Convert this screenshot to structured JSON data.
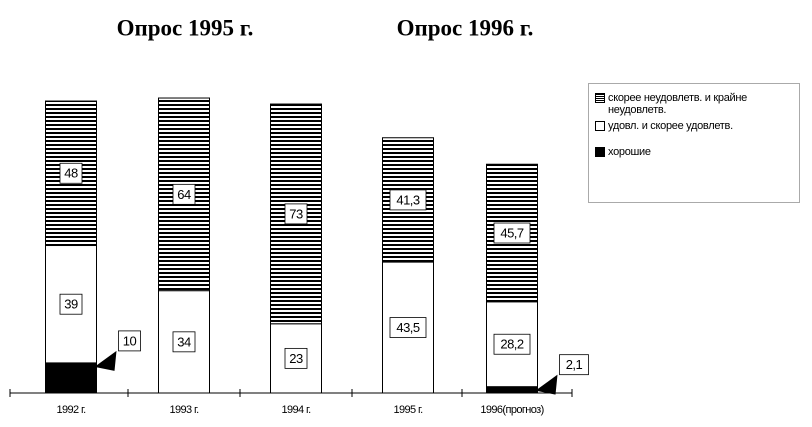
{
  "chart_data": {
    "type": "stacked-bar",
    "annotations": [
      "Опрос 1995 г.",
      "Опрос 1996 г."
    ],
    "categories": [
      "1992 г.",
      "1993 г.",
      "1994 г.",
      "1995 г.",
      "1996(прогноз)"
    ],
    "series": [
      {
        "name": "хорошие",
        "color": "#000000",
        "values": [
          10,
          null,
          null,
          null,
          2.1
        ],
        "value_labels": [
          "10",
          null,
          null,
          null,
          "2,1"
        ]
      },
      {
        "name": "удовл. и скорее удовлетв.",
        "color": "#ffffff",
        "values": [
          39,
          34,
          23,
          43.5,
          28.2
        ],
        "value_labels": [
          "39",
          "34",
          "23",
          "43,5",
          "28,2"
        ]
      },
      {
        "name": "скорее неудовлетв. и крайне неудовлетв.",
        "color": "#000000",
        "pattern": "horizontal-stripes",
        "values": [
          48,
          64,
          73,
          41.3,
          45.7
        ],
        "value_labels": [
          "48",
          "64",
          "73",
          "41,3",
          "45,7"
        ]
      }
    ],
    "ylim": [
      0,
      100
    ]
  }
}
